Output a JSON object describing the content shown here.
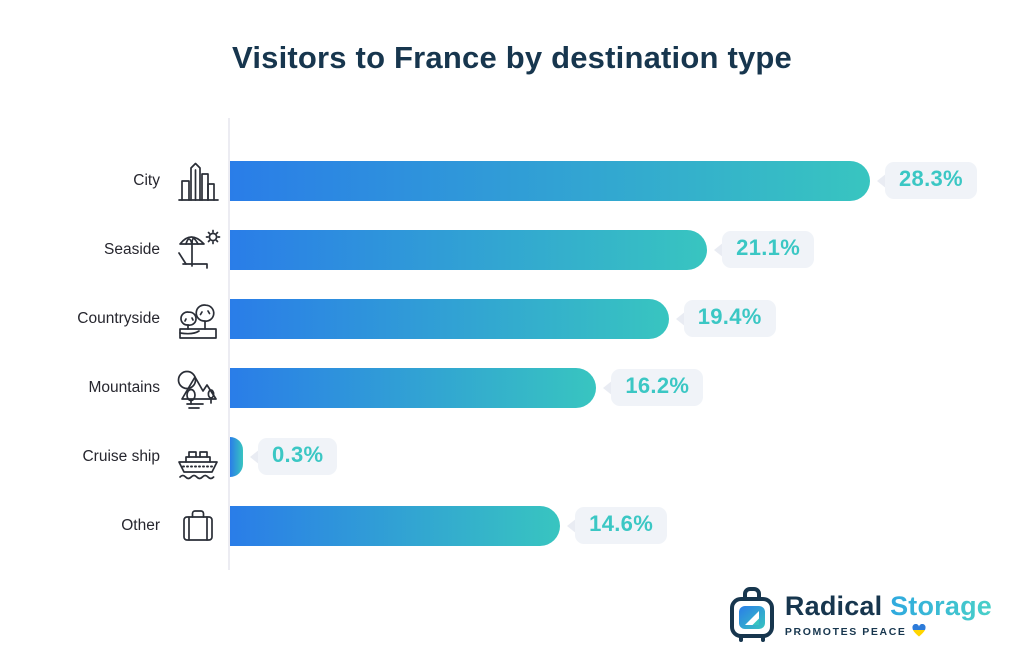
{
  "title": "Visitors to France by destination type",
  "chart_data": {
    "type": "bar",
    "orientation": "horizontal",
    "title": "Visitors to France by destination type",
    "categories": [
      "City",
      "Seaside",
      "Countryside",
      "Mountains",
      "Cruise ship",
      "Other"
    ],
    "values": [
      28.3,
      21.1,
      19.4,
      16.2,
      0.3,
      14.6
    ],
    "value_labels": [
      "28.3%",
      "21.1%",
      "19.4%",
      "16.2%",
      "0.3%",
      "14.6%"
    ],
    "icons": [
      "city-icon",
      "seaside-icon",
      "countryside-icon",
      "mountains-icon",
      "cruise-ship-icon",
      "other-icon"
    ],
    "xlim": [
      0,
      28.3
    ],
    "grid": "off",
    "legend": "none",
    "bar_gradient_start": "#2A7DE8",
    "bar_gradient_end": "#38C5C0",
    "value_color": "#3BC7C4",
    "value_box_bg": "#F0F3F8"
  },
  "logo": {
    "brand_primary": "Radical",
    "brand_secondary": "Storage",
    "tagline": "PROMOTES PEACE",
    "primary_color": "#17364E",
    "secondary_color": "#35BEDD"
  }
}
